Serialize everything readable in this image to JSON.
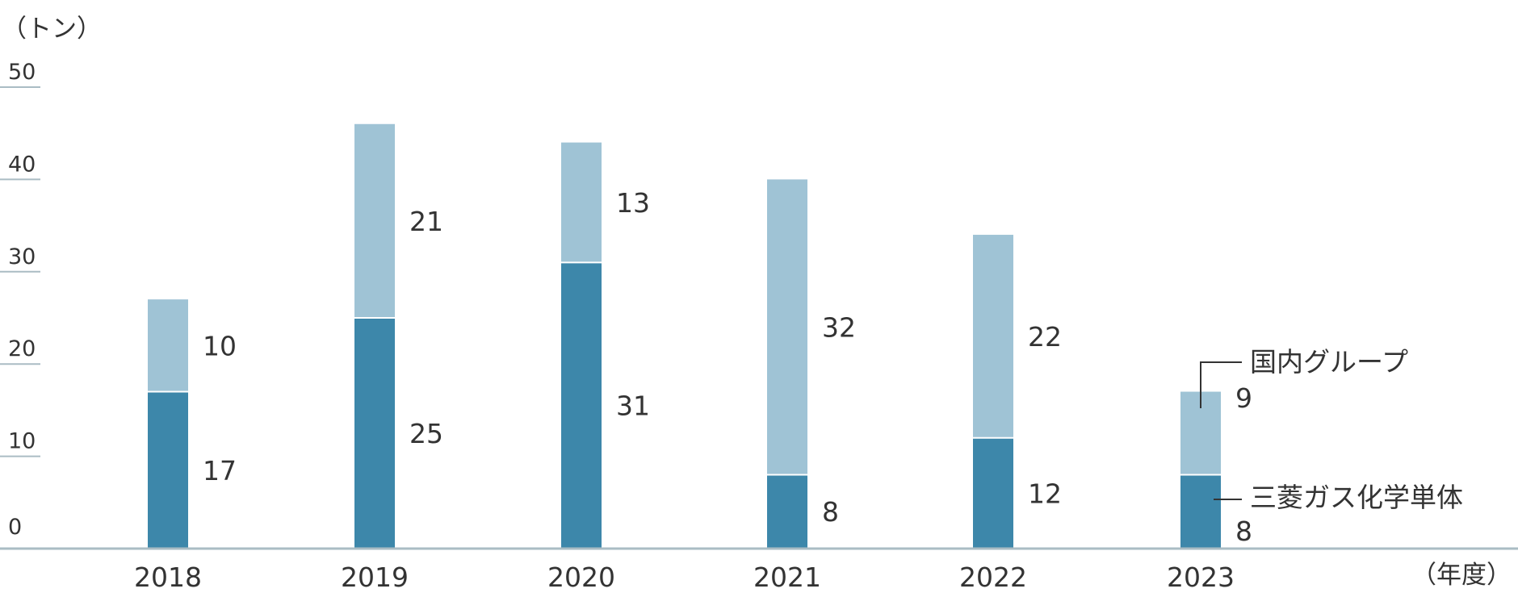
{
  "chart_data": {
    "type": "bar",
    "stacked": true,
    "y_unit": "（トン）",
    "x_unit": "（年度）",
    "categories": [
      "2018",
      "2019",
      "2020",
      "2021",
      "2022",
      "2023"
    ],
    "yticks": [
      "0",
      "10",
      "20",
      "30",
      "40",
      "50"
    ],
    "ylim": [
      0,
      50
    ],
    "series": [
      {
        "name": "三菱ガス化学単体",
        "values": [
          17,
          25,
          31,
          8,
          12,
          8
        ],
        "color": "#3d87aa"
      },
      {
        "name": "国内グループ",
        "values": [
          10,
          21,
          13,
          32,
          22,
          9
        ],
        "color": "#9fc3d5"
      }
    ],
    "value_labels": {
      "lower": [
        "17",
        "25",
        "31",
        "8",
        "12",
        "8"
      ],
      "upper": [
        "10",
        "21",
        "13",
        "32",
        "22",
        "9"
      ]
    },
    "grid": false,
    "legend": "callout labels on last bar",
    "axis_color": "#aabcc4"
  }
}
